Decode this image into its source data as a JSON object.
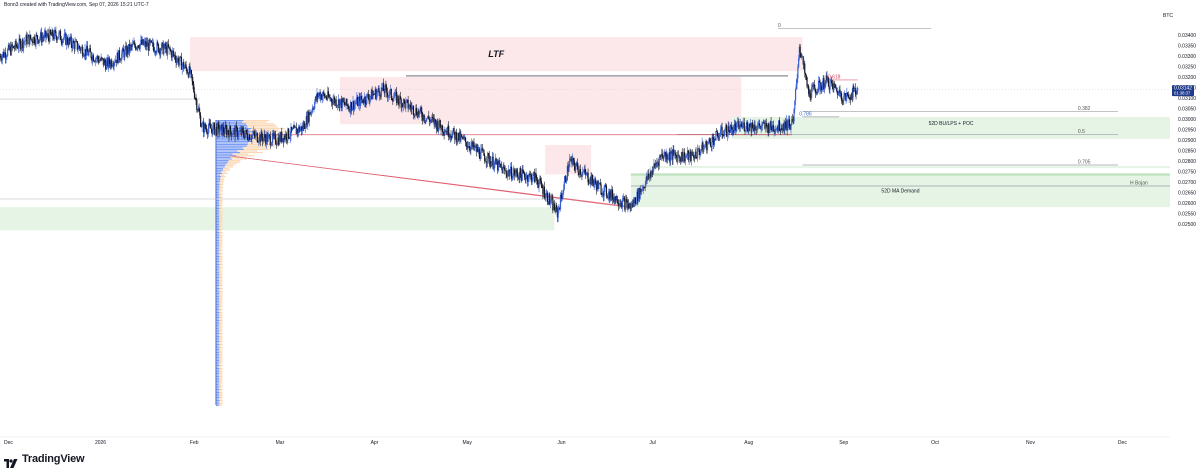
{
  "header": {
    "text": "Bonn3 created with TradingView.com, Sep 07, 2026 15:21 UTC-7"
  },
  "symbol": "BTC",
  "footer": {
    "brand": "TradingView",
    "logo_icon": "tradingview-logo-icon"
  },
  "colors": {
    "up": "#3a5fd0",
    "down": "#131722",
    "supply_zone": "#fce4e8",
    "demand_zone": "#e3f3e3",
    "vp_up": "#7b9cf4",
    "vp_down": "#fbd9b4",
    "price_tag": "#1e3a8a"
  },
  "chart_data": {
    "type": "candlestick",
    "title": "",
    "x_ticks": [
      "Dec",
      "2026",
      "Feb",
      "Mar",
      "Apr",
      "May",
      "Jun",
      "Jul",
      "Aug",
      "Sep",
      "Oct",
      "Nov",
      "Dec"
    ],
    "y_ticks": [
      "0.03400",
      "0.03350",
      "0.03300",
      "0.03250",
      "0.03200",
      "0.03150",
      "0.03100",
      "0.03050",
      "0.03000",
      "0.02950",
      "0.02900",
      "0.02850",
      "0.02800",
      "0.02750",
      "0.02700",
      "0.02650",
      "0.02600",
      "0.02550",
      "0.02500"
    ],
    "ylim": [
      0.0246,
      0.0349
    ],
    "current_price": {
      "label": "0.03142",
      "countdown": "01:38:37",
      "value": 0.03142
    },
    "approx_close_path": [
      {
        "x": "2025-12-01",
        "y": 0.033
      },
      {
        "x": "2025-12-10",
        "y": 0.0338
      },
      {
        "x": "2025-12-20",
        "y": 0.034
      },
      {
        "x": "2026-01-05",
        "y": 0.0326
      },
      {
        "x": "2026-01-15",
        "y": 0.0336
      },
      {
        "x": "2026-01-25",
        "y": 0.0333
      },
      {
        "x": "2026-02-01",
        "y": 0.0322
      },
      {
        "x": "2026-02-05",
        "y": 0.0296
      },
      {
        "x": "2026-02-15",
        "y": 0.0294
      },
      {
        "x": "2026-03-01",
        "y": 0.029
      },
      {
        "x": "2026-03-10",
        "y": 0.0296
      },
      {
        "x": "2026-03-15",
        "y": 0.0312
      },
      {
        "x": "2026-03-25",
        "y": 0.0306
      },
      {
        "x": "2026-04-05",
        "y": 0.0314
      },
      {
        "x": "2026-04-20",
        "y": 0.03
      },
      {
        "x": "2026-05-01",
        "y": 0.029
      },
      {
        "x": "2026-05-15",
        "y": 0.0275
      },
      {
        "x": "2026-05-25",
        "y": 0.0272
      },
      {
        "x": "2026-06-01",
        "y": 0.0255
      },
      {
        "x": "2026-06-05",
        "y": 0.028
      },
      {
        "x": "2026-06-15",
        "y": 0.0267
      },
      {
        "x": "2026-06-25",
        "y": 0.0258
      },
      {
        "x": "2026-07-05",
        "y": 0.0283
      },
      {
        "x": "2026-07-15",
        "y": 0.0282
      },
      {
        "x": "2026-07-25",
        "y": 0.0294
      },
      {
        "x": "2026-08-01",
        "y": 0.0297
      },
      {
        "x": "2026-08-10",
        "y": 0.0296
      },
      {
        "x": "2026-08-17",
        "y": 0.0298
      },
      {
        "x": "2026-08-19",
        "y": 0.0335
      },
      {
        "x": "2026-08-22",
        "y": 0.0312
      },
      {
        "x": "2026-08-28",
        "y": 0.0318
      },
      {
        "x": "2026-09-03",
        "y": 0.031
      },
      {
        "x": "2026-09-07",
        "y": 0.03142
      }
    ],
    "zones": [
      {
        "name": "LTF",
        "kind": "supply",
        "from": "2026-02-01",
        "to": "2026-08-20",
        "y_low": 0.03228,
        "y_high": 0.0339
      },
      {
        "name": "",
        "kind": "supply",
        "from": "2026-03-22",
        "to": "2026-07-31",
        "y_low": 0.02975,
        "y_high": 0.032
      },
      {
        "name": "",
        "kind": "supply",
        "from": "2026-05-28",
        "to": "2026-06-12",
        "y_low": 0.02736,
        "y_high": 0.02876
      },
      {
        "name": "52D BU/LPS + POC",
        "kind": "demand",
        "from": "2026-07-28",
        "to": "2027-01-01",
        "y_low": 0.0295,
        "y_high": 0.0301
      },
      {
        "name": "",
        "kind": "demand",
        "from": "2026-07-28",
        "to": "2027-01-01",
        "y_low": 0.02905,
        "y_high": 0.0295
      },
      {
        "name": "",
        "kind": "demand",
        "from": "2026-07-01",
        "to": "2027-01-01",
        "y_low": 0.02766,
        "y_high": 0.02776
      },
      {
        "name": "52D MA Demand",
        "kind": "demand",
        "from": "2026-06-25",
        "to": "2027-01-01",
        "y_low": 0.0258,
        "y_high": 0.02741
      },
      {
        "name": "",
        "kind": "demand",
        "from": "2025-12-01",
        "to": "2026-05-31",
        "y_low": 0.0247,
        "y_high": 0.0258
      }
    ],
    "levels": [
      {
        "label": "0",
        "value": 0.0343,
        "from": "2026-08-12",
        "to": "2026-10-01"
      },
      {
        "label": "0.618",
        "value": 0.03186,
        "from": "2026-08-28",
        "to": "2026-09-07"
      },
      {
        "label": "0.382",
        "value": 0.03036,
        "from": "2026-08-20",
        "to": "2026-12-01"
      },
      {
        "label": "0.786",
        "value": 0.0301,
        "from": "2026-08-20",
        "to": "2026-09-01"
      },
      {
        "label": "0.5",
        "value": 0.02927,
        "from": "2026-07-10",
        "to": "2026-12-01"
      },
      {
        "label": "0.705",
        "value": 0.02781,
        "from": "2026-08-20",
        "to": "2026-12-01"
      },
      {
        "label": "H Bojan",
        "value": 0.02681,
        "from": "2026-06-25",
        "to": "2027-01-01"
      }
    ],
    "annotations": [
      {
        "text": "LTF"
      }
    ],
    "volume_profile": {
      "type": "visible range",
      "poc": 0.02925
    }
  }
}
